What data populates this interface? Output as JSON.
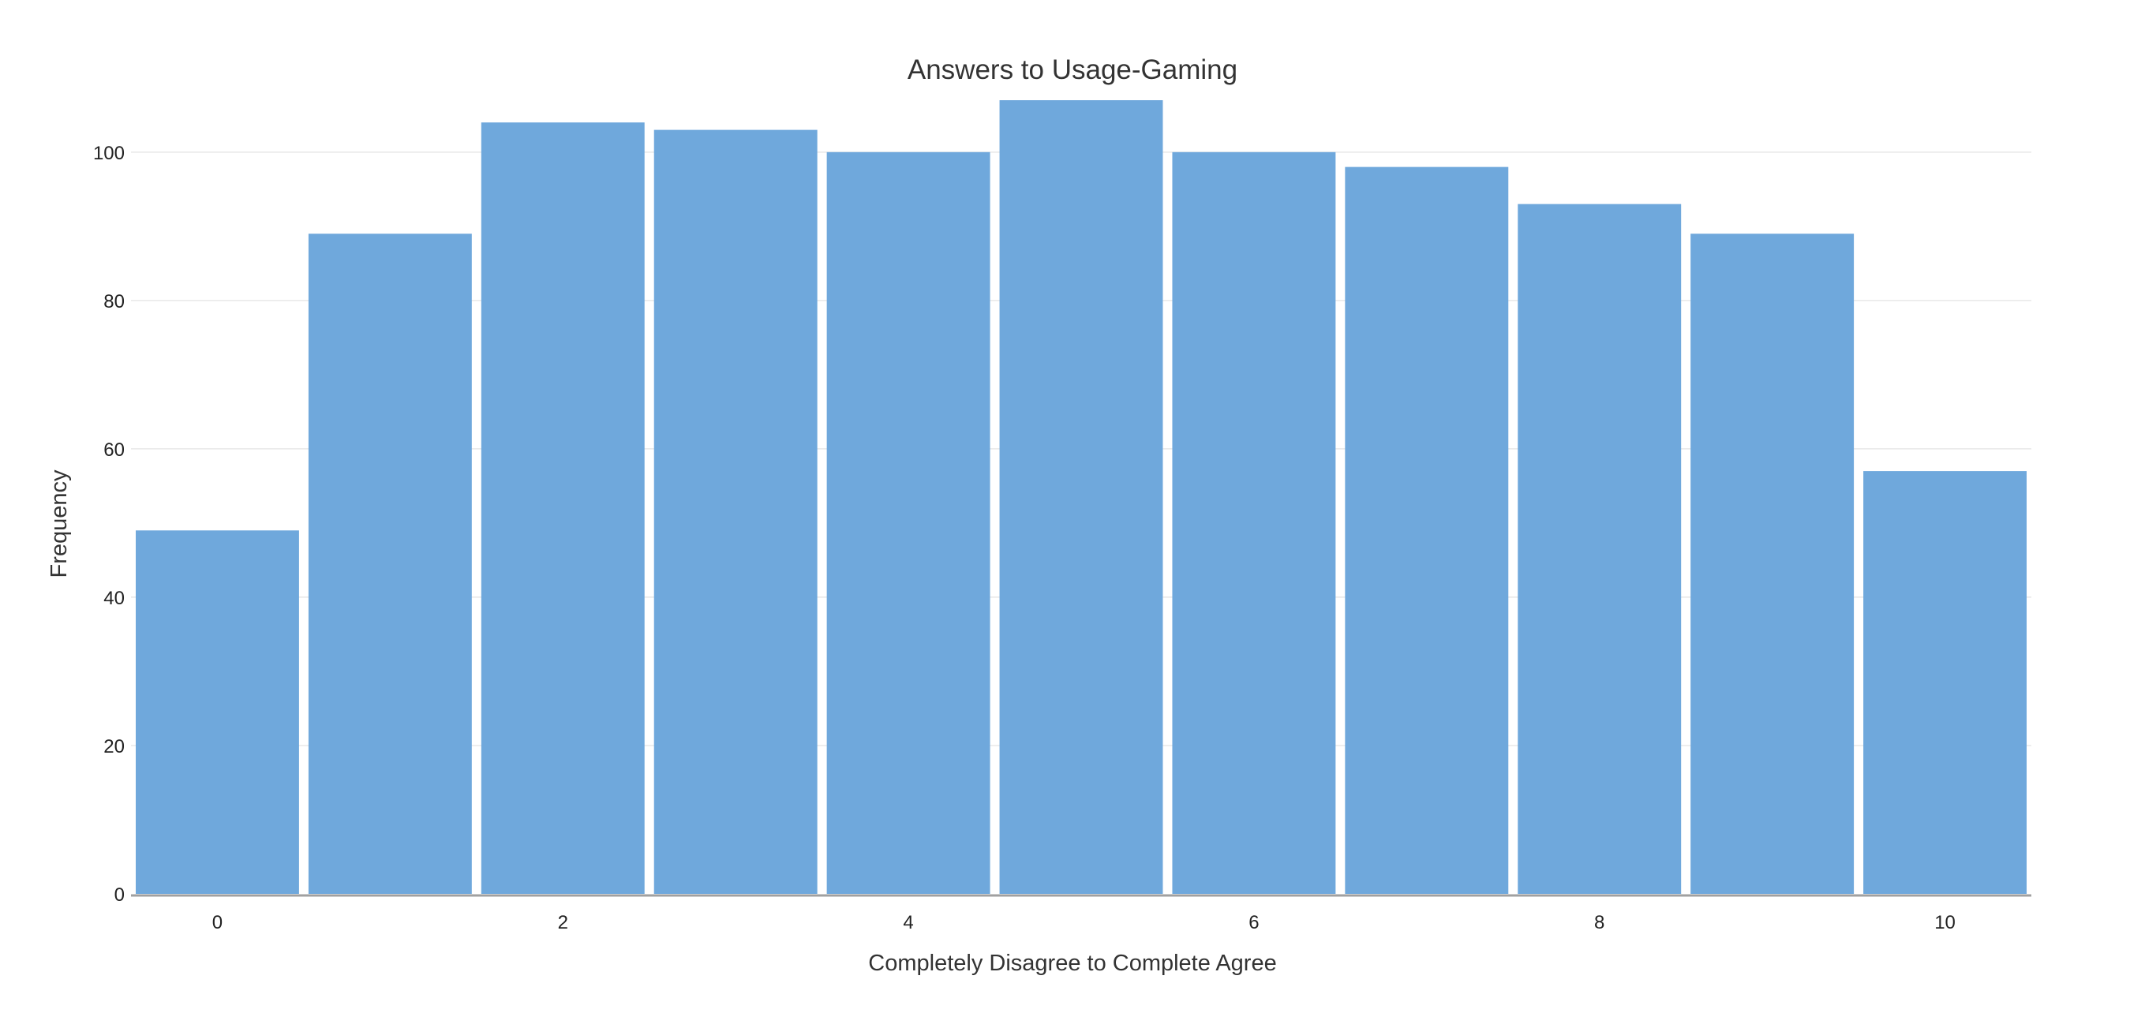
{
  "chart_data": {
    "type": "bar",
    "title": "Answers to Usage-Gaming",
    "xlabel": "Completely Disagree to Complete Agree",
    "ylabel": "Frequency",
    "categories": [
      0,
      1,
      2,
      3,
      4,
      5,
      6,
      7,
      8,
      9,
      10
    ],
    "values": [
      49,
      89,
      104,
      103,
      100,
      107,
      100,
      98,
      93,
      89,
      57
    ],
    "xlim": [
      -0.5,
      10.5
    ],
    "ylim": [
      0,
      112
    ],
    "x_ticks": [
      0,
      2,
      4,
      6,
      8,
      10
    ],
    "y_ticks": [
      0,
      20,
      40,
      60,
      80,
      100
    ],
    "bar_color": "#6fa8dc",
    "grid": true,
    "legend": false
  }
}
